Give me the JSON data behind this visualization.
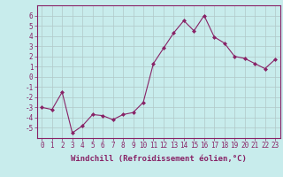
{
  "x": [
    0,
    1,
    2,
    3,
    4,
    5,
    6,
    7,
    8,
    9,
    10,
    11,
    12,
    13,
    14,
    15,
    16,
    17,
    18,
    19,
    20,
    21,
    22,
    23
  ],
  "y": [
    -3,
    -3.2,
    -1.5,
    -5.5,
    -4.8,
    -3.7,
    -3.8,
    -4.2,
    -3.7,
    -3.5,
    -2.5,
    1.3,
    2.8,
    4.3,
    5.5,
    4.5,
    6.0,
    3.9,
    3.3,
    2.0,
    1.8,
    1.3,
    0.8,
    1.7
  ],
  "line_color": "#882266",
  "marker": "D",
  "marker_size": 2,
  "bg_color": "#c8ecec",
  "grid_color": "#b0c8c8",
  "xlabel": "Windchill (Refroidissement éolien,°C)",
  "xlim": [
    -0.5,
    23.5
  ],
  "ylim": [
    -6,
    7
  ],
  "yticks": [
    -5,
    -4,
    -3,
    -2,
    -1,
    0,
    1,
    2,
    3,
    4,
    5,
    6
  ],
  "xticks": [
    0,
    1,
    2,
    3,
    4,
    5,
    6,
    7,
    8,
    9,
    10,
    11,
    12,
    13,
    14,
    15,
    16,
    17,
    18,
    19,
    20,
    21,
    22,
    23
  ],
  "tick_fontsize": 5.5,
  "xlabel_fontsize": 6.5,
  "spine_color": "#882266",
  "axis_bg": "#c8ecec"
}
